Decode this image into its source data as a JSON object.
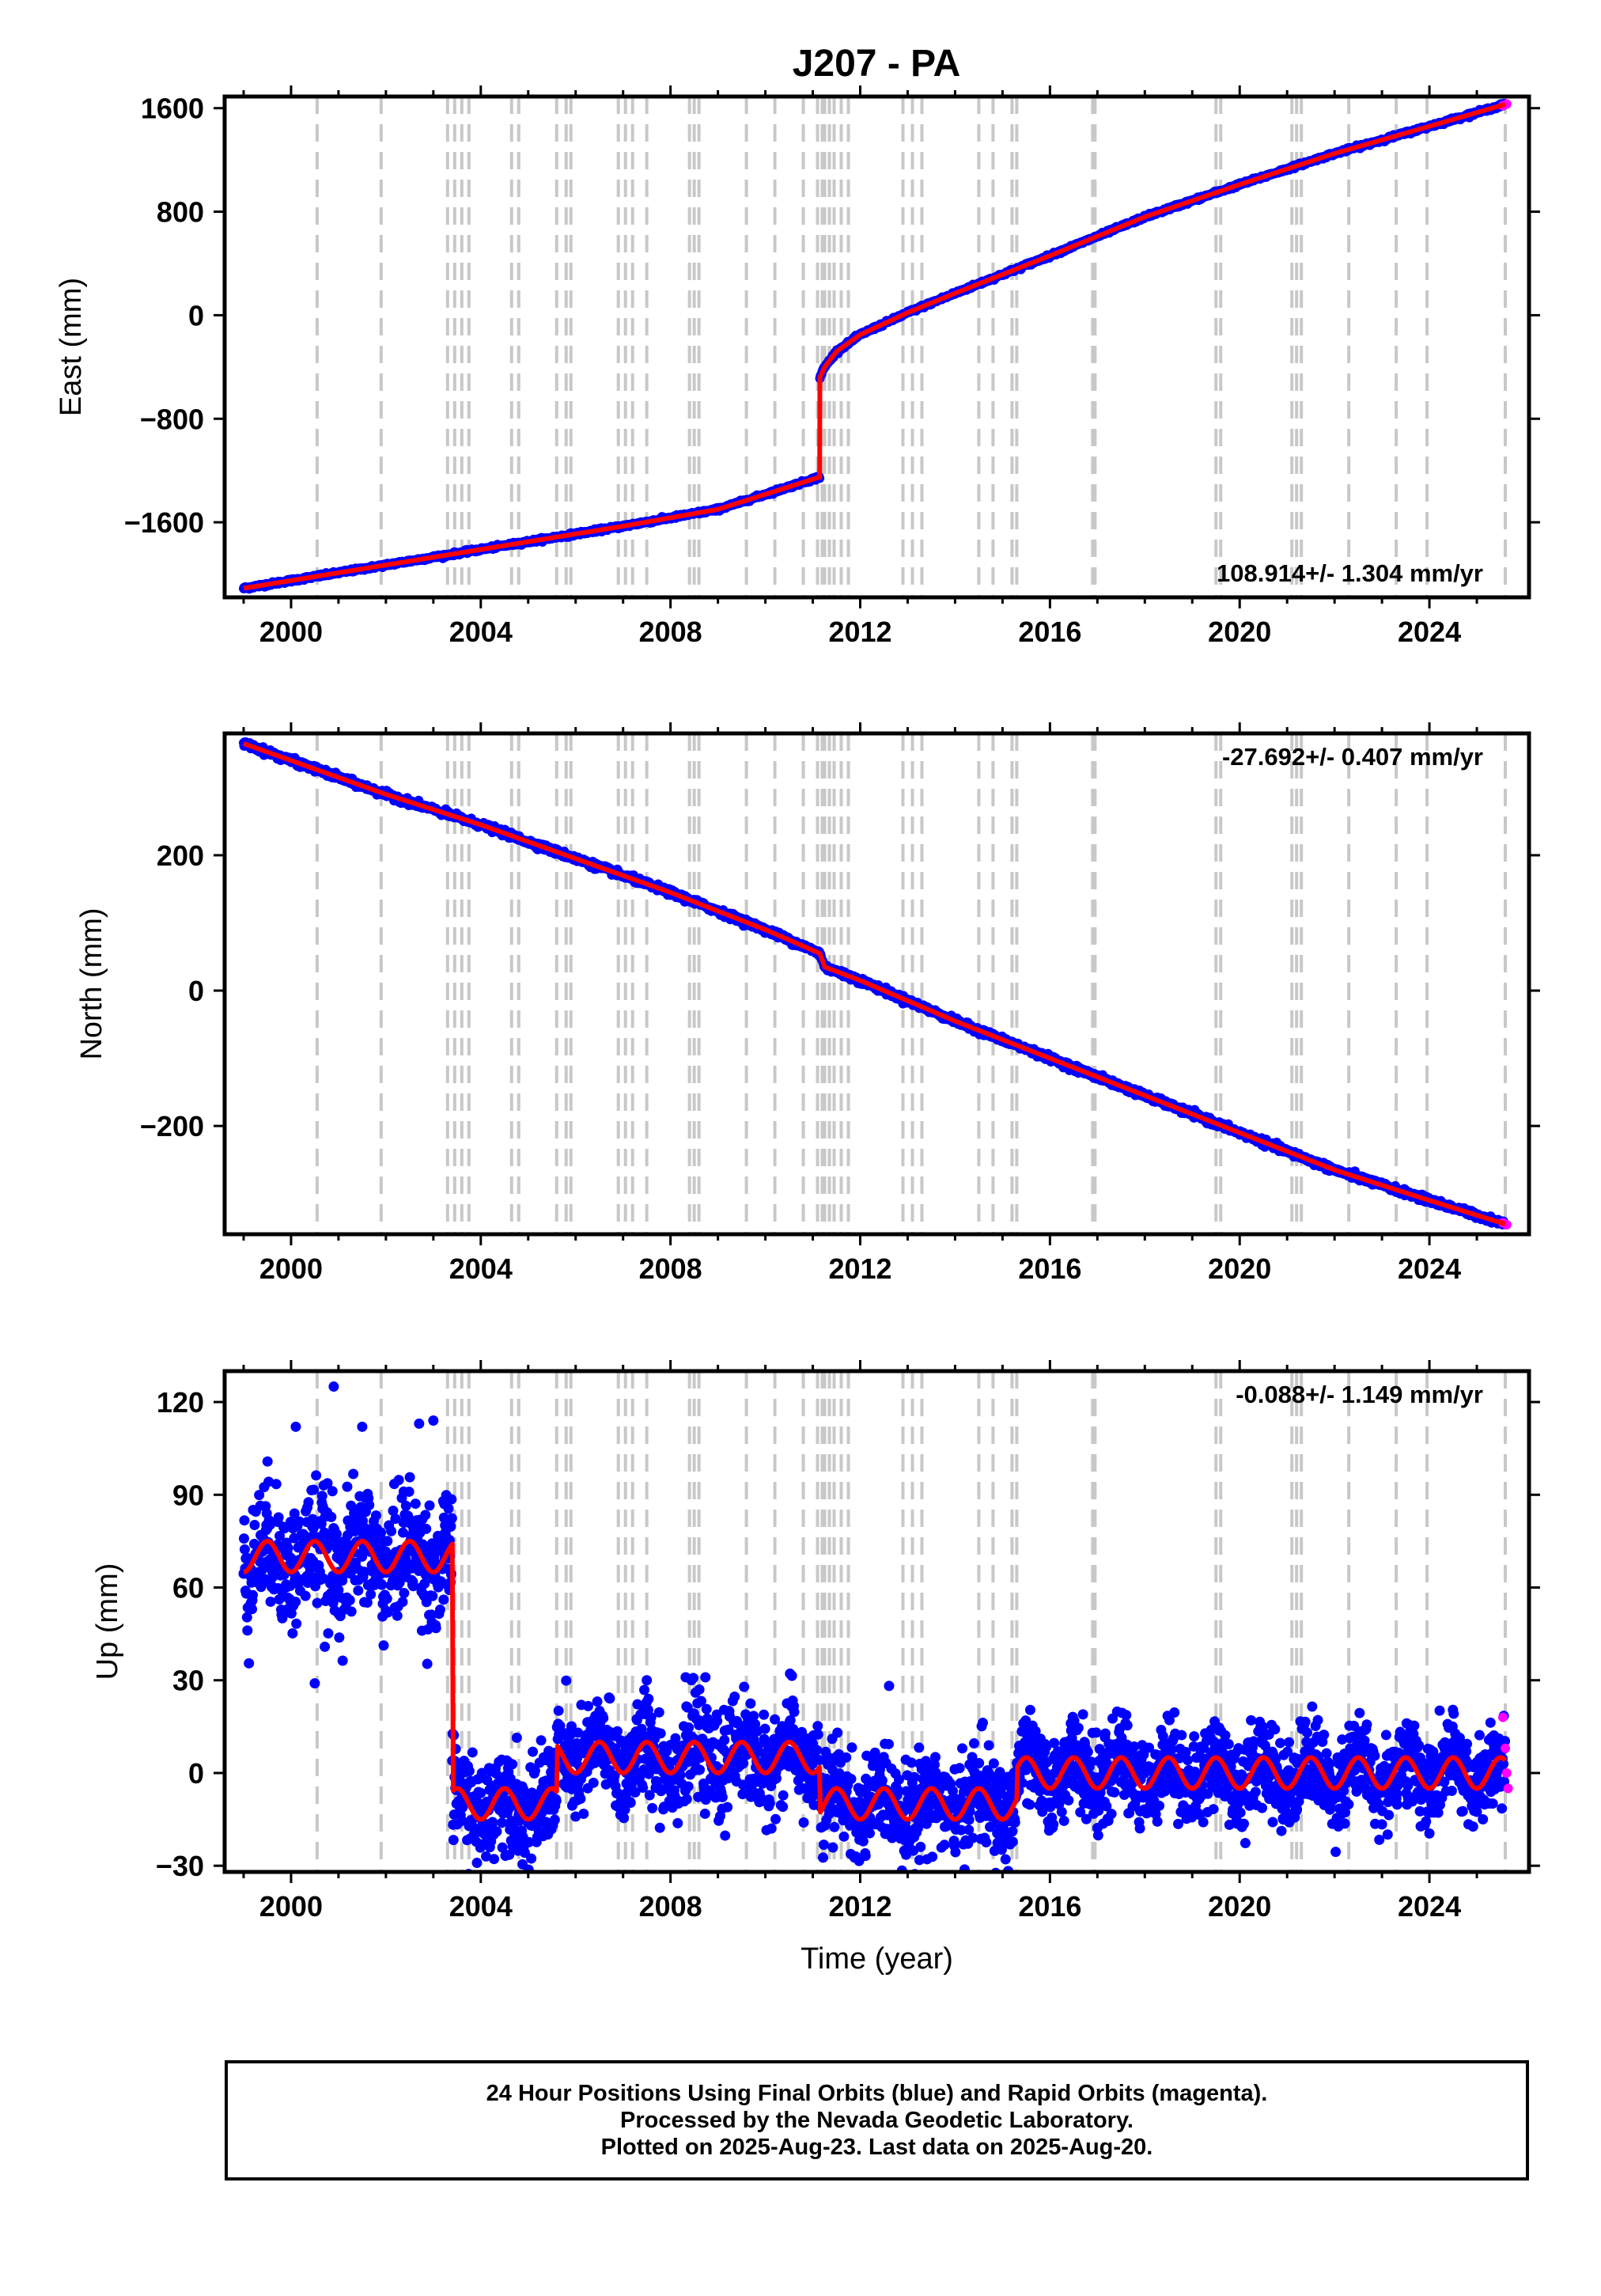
{
  "chart_data": [
    {
      "type": "scatter",
      "panel": "east",
      "title": "J207 - PA",
      "ylabel": "East (mm)",
      "xlabel": "",
      "xlim": [
        1998.6,
        2026.1
      ],
      "ylim": [
        -2180,
        1690
      ],
      "xticks": [
        2000,
        2004,
        2008,
        2012,
        2016,
        2020,
        2024
      ],
      "yticks": [
        -1600,
        -800,
        0,
        800,
        1600
      ],
      "ytick_labels": [
        "−1600",
        "−800",
        "0",
        "800",
        "1600"
      ],
      "rate_text": "108.914+/- 1.304 mm/yr",
      "rate_position": "bottom-right",
      "series": [
        {
          "kind": "final-orbits",
          "color": "#0000ff",
          "segments": [
            {
              "x": [
                1999.0,
                2001.0,
                2003.0,
                2005.0,
                2007.0,
                2009.0,
                2011.15
              ],
              "y": [
                -2110,
                -1990,
                -1870,
                -1750,
                -1630,
                -1500,
                -1250
              ]
            },
            {
              "x": [
                2011.15,
                2011.25,
                2011.5,
                2012.0,
                2013.0,
                2014.0,
                2016.0,
                2018.0,
                2020.0,
                2022.0,
                2024.0,
                2025.6
              ],
              "y": [
                -480,
                -400,
                -280,
                -150,
                20,
                170,
                460,
                760,
                1010,
                1250,
                1460,
                1630
              ]
            }
          ]
        },
        {
          "kind": "rapid-orbits",
          "color": "#ff00ff",
          "x": [
            2025.55,
            2025.63
          ],
          "y": [
            1620,
            1632
          ]
        }
      ],
      "model_color": "#ff0000"
    },
    {
      "type": "scatter",
      "panel": "north",
      "ylabel": "North (mm)",
      "xlabel": "",
      "xlim": [
        1998.6,
        2026.1
      ],
      "ylim": [
        -360,
        380
      ],
      "xticks": [
        2000,
        2004,
        2008,
        2012,
        2016,
        2020,
        2024
      ],
      "yticks": [
        -200,
        0,
        200
      ],
      "ytick_labels": [
        "−200",
        "0",
        "200"
      ],
      "rate_text": "-27.692+/- 0.407 mm/yr",
      "rate_position": "top-right",
      "series": [
        {
          "kind": "final-orbits",
          "color": "#0000ff",
          "x": [
            1999.0,
            2000.0,
            2002.0,
            2004.0,
            2006.0,
            2008.0,
            2010.0,
            2011.15,
            2011.25,
            2012.0,
            2014.0,
            2016.0,
            2018.0,
            2020.0,
            2022.0,
            2024.0,
            2025.6
          ],
          "y": [
            365,
            340,
            290,
            245,
            195,
            145,
            90,
            55,
            35,
            15,
            -45,
            -100,
            -155,
            -210,
            -265,
            -310,
            -345
          ]
        },
        {
          "kind": "rapid-orbits",
          "color": "#ff00ff",
          "x": [
            2025.55,
            2025.63
          ],
          "y": [
            -343,
            -346
          ]
        }
      ],
      "model_color": "#ff0000"
    },
    {
      "type": "scatter",
      "panel": "up",
      "ylabel": "Up (mm)",
      "xlabel": "Time (year)",
      "xlim": [
        1998.6,
        2026.1
      ],
      "ylim": [
        -32,
        130
      ],
      "xticks": [
        2000,
        2004,
        2008,
        2012,
        2016,
        2020,
        2024
      ],
      "yticks": [
        -30,
        0,
        30,
        60,
        90,
        120
      ],
      "ytick_labels": [
        "−30",
        "0",
        "30",
        "60",
        "90",
        "120"
      ],
      "rate_text": "-0.088+/- 1.149 mm/yr",
      "rate_position": "top-right",
      "seasonal_amplitude_mm": 5,
      "levels": [
        {
          "from": 1999.0,
          "to": 2003.4,
          "mean": 70,
          "noise": 10
        },
        {
          "from": 2003.4,
          "to": 2005.6,
          "mean": -10,
          "noise": 8
        },
        {
          "from": 2005.6,
          "to": 2011.15,
          "mean": 5,
          "noise": 8
        },
        {
          "from": 2011.15,
          "to": 2015.3,
          "mean": -10,
          "noise": 8
        },
        {
          "from": 2015.3,
          "to": 2025.6,
          "mean": 0,
          "noise": 7
        }
      ],
      "outliers": {
        "x": [
          2000.9,
          2001.5,
          2002.7,
          2003.0,
          2000.1,
          2007.5,
          2000.5
        ],
        "y": [
          125,
          112,
          113,
          114,
          112,
          30,
          29
        ]
      },
      "series": [
        {
          "kind": "final-orbits",
          "color": "#0000ff"
        },
        {
          "kind": "rapid-orbits",
          "color": "#ff00ff",
          "x": [
            2025.55,
            2025.6,
            2025.63,
            2025.66
          ],
          "y": [
            18,
            8,
            0,
            -5
          ]
        }
      ],
      "model_color": "#ff0000"
    }
  ],
  "equipment_change_dates": [
    2000.55,
    2001.9,
    2003.3,
    2003.45,
    2003.6,
    2003.75,
    2004.65,
    2004.8,
    2005.6,
    2005.8,
    2005.9,
    2006.9,
    2007.05,
    2007.2,
    2007.5,
    2008.4,
    2008.5,
    2008.6,
    2009.6,
    2010.2,
    2010.8,
    2011.1,
    2011.2,
    2011.25,
    2011.35,
    2011.45,
    2011.6,
    2011.75,
    2012.9,
    2013.1,
    2013.3,
    2014.5,
    2014.8,
    2015.2,
    2015.3,
    2016.9,
    2016.95,
    2019.5,
    2019.6,
    2021.1,
    2021.2,
    2021.3,
    2022.3,
    2023.3,
    2023.95,
    2025.6
  ],
  "equipment_change_color": "#c8c8c8",
  "footer": {
    "line1": "24 Hour Positions Using Final Orbits (blue) and Rapid Orbits (magenta).",
    "line2": "Processed by the Nevada Geodetic Laboratory.",
    "line3": "Plotted on 2025-Aug-23. Last data on 2025-Aug-20."
  }
}
